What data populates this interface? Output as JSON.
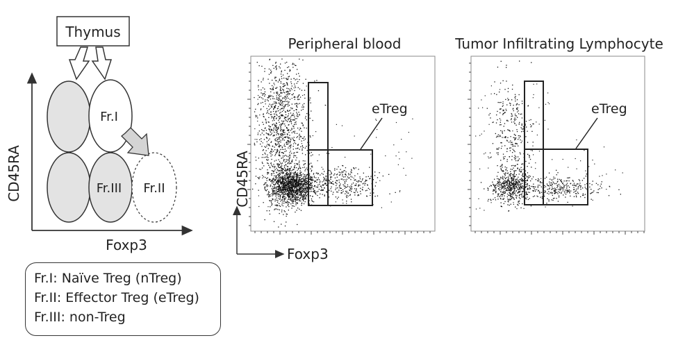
{
  "schematic": {
    "source_label": "Thymus",
    "y_axis_label": "CD45RA",
    "x_axis_label": "Foxp3",
    "fractions": [
      {
        "label": "Fr.I"
      },
      {
        "label": "Fr.II"
      },
      {
        "label": "Fr.III"
      }
    ],
    "colors": {
      "shaded_fill": "#e3e3e3",
      "arrow_fill": "#d4d4d4",
      "stroke": "#333333"
    }
  },
  "legend": {
    "lines": [
      "Fr.I: Naïve Treg (nTreg)",
      "Fr.II: Effector Treg (eTreg)",
      "Fr.III: non-Treg"
    ]
  },
  "flow_plots": {
    "y_axis_label": "CD45RA",
    "x_axis_label": "Foxp3",
    "gate_label": "eTreg",
    "panels": [
      {
        "title": "Peripheral blood"
      },
      {
        "title": "Tumor Infiltrating Lymphocyte"
      }
    ]
  }
}
